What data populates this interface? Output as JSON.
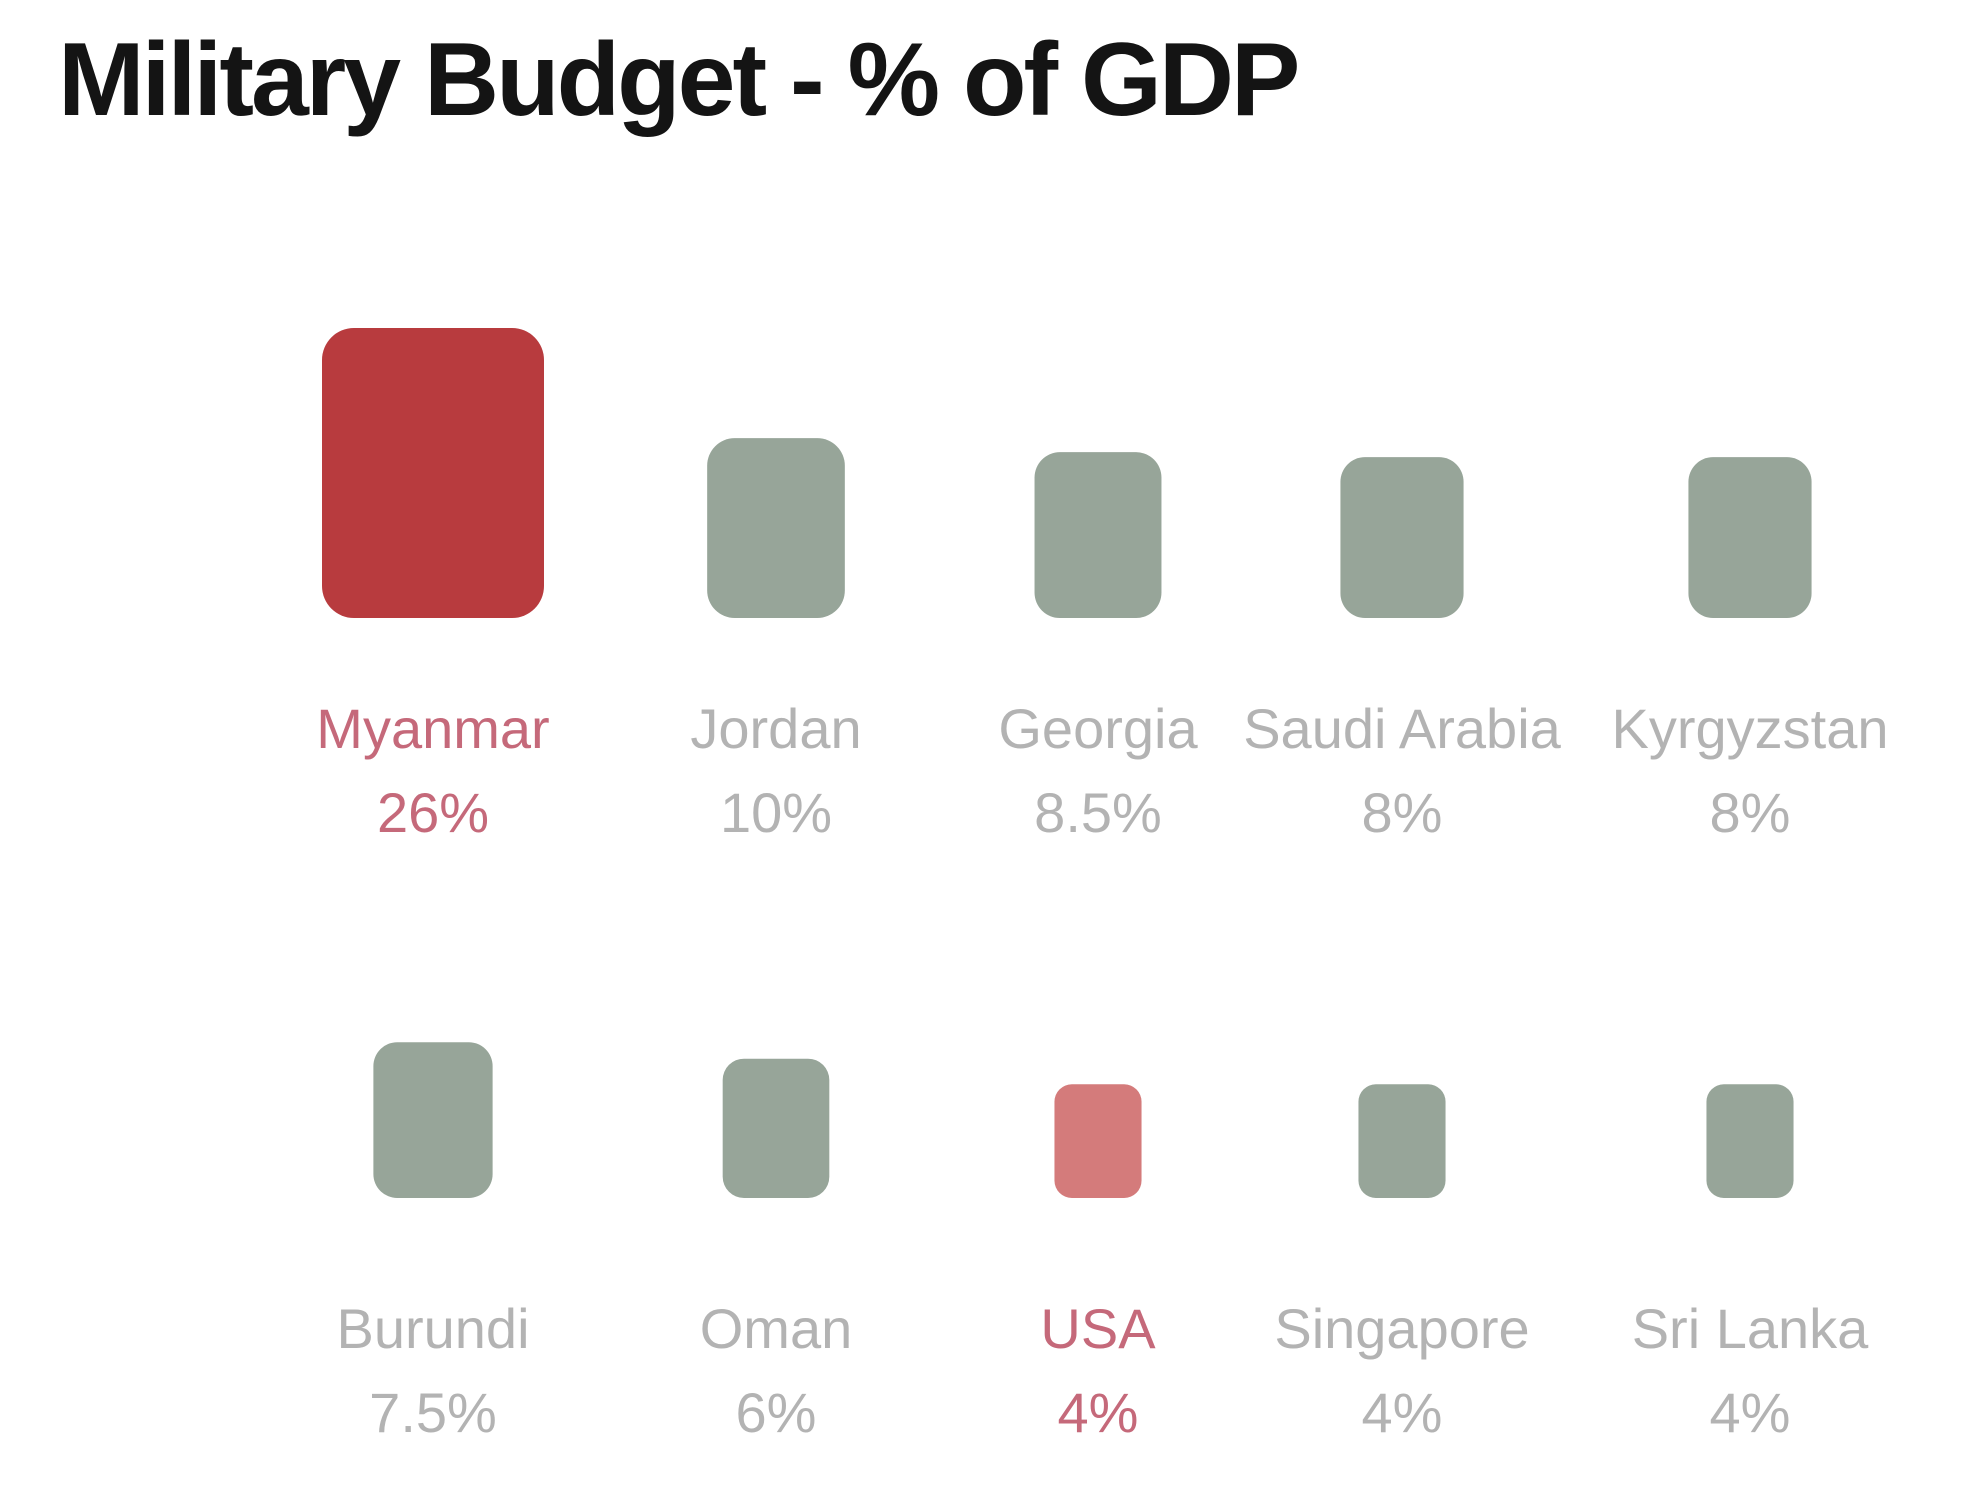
{
  "title": "Military Budget - % of GDP",
  "colors": {
    "highlight": "#b83b3e",
    "highlight_light": "#d47b7b",
    "neutral": "#97a599",
    "label_neutral": "#b3b3b3",
    "label_highlight": "#c5697a",
    "title": "#141414"
  },
  "chart_data": {
    "type": "bar",
    "title": "Military Budget - % of GDP",
    "xlabel": "",
    "ylabel": "",
    "encoding": "area",
    "rows": 2,
    "grid": false,
    "legend": "none",
    "categories": [
      "Myanmar",
      "Jordan",
      "Georgia",
      "Saudi Arabia",
      "Kyrgyzstan",
      "Burundi",
      "Oman",
      "USA",
      "Singapore",
      "Sri Lanka"
    ],
    "values": [
      26,
      10,
      8.5,
      8,
      8,
      7.5,
      6,
      4,
      4,
      4
    ],
    "value_labels": [
      "26%",
      "10%",
      "8.5%",
      "8%",
      "8%",
      "7.5%",
      "6%",
      "4%",
      "4%",
      "4%"
    ],
    "highlighted": [
      "Myanmar",
      "USA"
    ],
    "series": [
      {
        "values": [
          26,
          10,
          8.5,
          8,
          8,
          7.5,
          6,
          4,
          4,
          4
        ]
      }
    ]
  }
}
